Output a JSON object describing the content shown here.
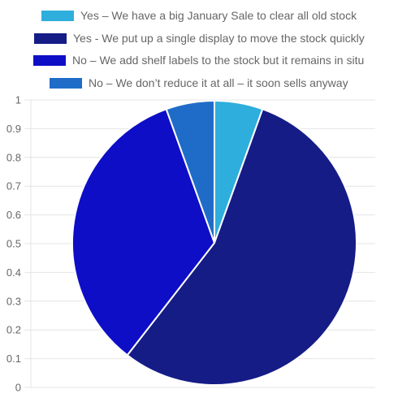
{
  "chart_data": {
    "type": "pie",
    "legend_position": "top",
    "grid": true,
    "ylim": [
      0,
      1
    ],
    "y_ticks": [
      "1",
      "0.9",
      "0.8",
      "0.7",
      "0.6",
      "0.5",
      "0.4",
      "0.3",
      "0.2",
      "0.1",
      "0"
    ],
    "series": [
      {
        "name": "Yes – We have a big January Sale to clear all old stock",
        "value": 0.055,
        "color": "#2eaedc"
      },
      {
        "name": "Yes - We put up a single display to move the stock quickly",
        "value": 0.55,
        "color": "#151c86"
      },
      {
        "name": "No – We add shelf labels to the stock but it remains in situ",
        "value": 0.34,
        "color": "#0e0ec7"
      },
      {
        "name": "No – We don’t reduce it at all – it soon sells anyway",
        "value": 0.055,
        "color": "#1f6cc8"
      }
    ]
  }
}
